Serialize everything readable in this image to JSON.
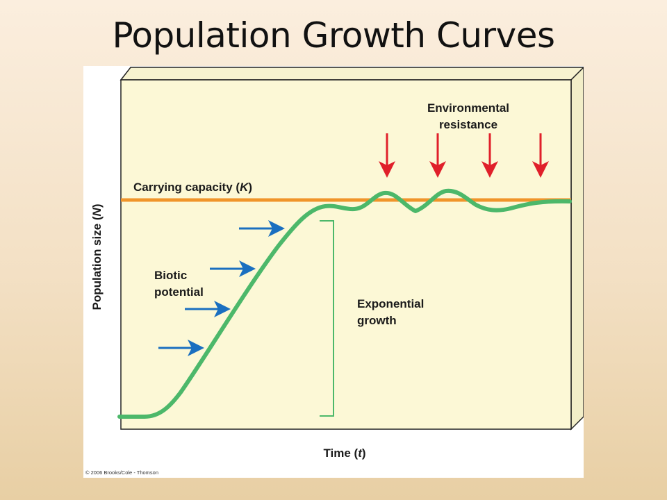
{
  "slide": {
    "title": "Population Growth Curves"
  },
  "figure": {
    "labels": {
      "environmental_resistance_line1": "Environmental",
      "environmental_resistance_line2": "resistance",
      "carrying_capacity_text": "Carrying capacity (",
      "carrying_capacity_symbol": "K",
      "carrying_capacity_close": ")",
      "biotic_potential_line1": "Biotic",
      "biotic_potential_line2": "potential",
      "exponential_growth_line1": "Exponential",
      "exponential_growth_line2": "growth",
      "y_axis_text": "Population size (",
      "y_axis_symbol": "N",
      "y_axis_close": ")",
      "x_axis_text": "Time (",
      "x_axis_symbol": "t",
      "x_axis_close": ")",
      "copyright": "© 2006 Brooks/Cole - Thomson"
    },
    "colors": {
      "panel_fill": "#fcf8d6",
      "panel_side": "#f2eec8",
      "growth_curve": "#4cb86a",
      "carrying_capacity_line": "#f0952a",
      "biotic_arrow": "#1a6fc0",
      "resistance_arrow": "#e0202a",
      "exponential_bracket": "#4cb86a"
    }
  }
}
